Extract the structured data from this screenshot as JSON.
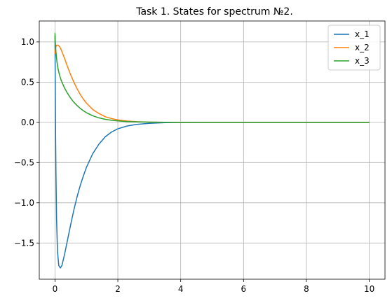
{
  "chart_data": {
    "type": "line",
    "title": "Task 1. States for spectrum №2.",
    "xlabel": "",
    "ylabel": "",
    "xlim": [
      -0.5,
      10.5
    ],
    "ylim": [
      -1.95,
      1.26
    ],
    "xticks": [
      0,
      2,
      4,
      6,
      8,
      10
    ],
    "xtick_labels": [
      "0",
      "2",
      "4",
      "6",
      "8",
      "10"
    ],
    "yticks": [
      1.0,
      0.5,
      0.0,
      -0.5,
      -1.0,
      -1.5
    ],
    "ytick_labels": [
      "1.0",
      "0.5",
      "0.0",
      "−0.5",
      "−1.0",
      "−1.5"
    ],
    "grid": true,
    "legend_position": "top-right",
    "series": [
      {
        "name": "x_1",
        "color": "#1f77b4",
        "points": [
          [
            0,
            1.08
          ],
          [
            0.01,
            0.4
          ],
          [
            0.02,
            -0.2
          ],
          [
            0.03,
            -0.6
          ],
          [
            0.05,
            -1.2
          ],
          [
            0.08,
            -1.6
          ],
          [
            0.12,
            -1.78
          ],
          [
            0.17,
            -1.81
          ],
          [
            0.22,
            -1.78
          ],
          [
            0.3,
            -1.65
          ],
          [
            0.4,
            -1.46
          ],
          [
            0.5,
            -1.27
          ],
          [
            0.6,
            -1.09
          ],
          [
            0.7,
            -0.93
          ],
          [
            0.8,
            -0.79
          ],
          [
            0.9,
            -0.67
          ],
          [
            1.0,
            -0.56
          ],
          [
            1.2,
            -0.39
          ],
          [
            1.4,
            -0.27
          ],
          [
            1.6,
            -0.18
          ],
          [
            1.8,
            -0.12
          ],
          [
            2.0,
            -0.08
          ],
          [
            2.3,
            -0.045
          ],
          [
            2.6,
            -0.025
          ],
          [
            3.0,
            -0.012
          ],
          [
            3.5,
            -0.004
          ],
          [
            4.0,
            -0.001
          ],
          [
            5,
            0
          ],
          [
            6,
            0
          ],
          [
            7,
            0
          ],
          [
            8,
            0
          ],
          [
            9,
            0
          ],
          [
            10,
            0
          ]
        ]
      },
      {
        "name": "x_2",
        "color": "#ff7f0e",
        "points": [
          [
            0,
            0.85
          ],
          [
            0.02,
            0.93
          ],
          [
            0.05,
            0.96
          ],
          [
            0.1,
            0.96
          ],
          [
            0.15,
            0.94
          ],
          [
            0.2,
            0.9
          ],
          [
            0.3,
            0.8
          ],
          [
            0.4,
            0.69
          ],
          [
            0.5,
            0.59
          ],
          [
            0.6,
            0.5
          ],
          [
            0.7,
            0.42
          ],
          [
            0.8,
            0.35
          ],
          [
            0.9,
            0.29
          ],
          [
            1.0,
            0.24
          ],
          [
            1.2,
            0.16
          ],
          [
            1.4,
            0.11
          ],
          [
            1.6,
            0.07
          ],
          [
            1.8,
            0.047
          ],
          [
            2.0,
            0.03
          ],
          [
            2.3,
            0.016
          ],
          [
            2.6,
            0.008
          ],
          [
            3.0,
            0.003
          ],
          [
            3.5,
            0.001
          ],
          [
            4,
            0
          ],
          [
            5,
            0
          ],
          [
            6,
            0
          ],
          [
            7,
            0
          ],
          [
            8,
            0
          ],
          [
            9,
            0
          ],
          [
            10,
            0
          ]
        ]
      },
      {
        "name": "x_3",
        "color": "#2ca02c",
        "points": [
          [
            0,
            1.11
          ],
          [
            0.01,
            1.0
          ],
          [
            0.03,
            0.88
          ],
          [
            0.06,
            0.76
          ],
          [
            0.1,
            0.66
          ],
          [
            0.15,
            0.58
          ],
          [
            0.2,
            0.52
          ],
          [
            0.3,
            0.43
          ],
          [
            0.4,
            0.36
          ],
          [
            0.5,
            0.3
          ],
          [
            0.6,
            0.25
          ],
          [
            0.7,
            0.21
          ],
          [
            0.8,
            0.175
          ],
          [
            0.9,
            0.145
          ],
          [
            1.0,
            0.12
          ],
          [
            1.2,
            0.082
          ],
          [
            1.4,
            0.056
          ],
          [
            1.6,
            0.038
          ],
          [
            1.8,
            0.026
          ],
          [
            2.0,
            0.018
          ],
          [
            2.3,
            0.01
          ],
          [
            2.6,
            0.006
          ],
          [
            3.0,
            0.003
          ],
          [
            3.5,
            0.001
          ],
          [
            4,
            0
          ],
          [
            5,
            0
          ],
          [
            6,
            0
          ],
          [
            7,
            0
          ],
          [
            8,
            0
          ],
          [
            9,
            0
          ],
          [
            10,
            0
          ]
        ]
      }
    ]
  }
}
